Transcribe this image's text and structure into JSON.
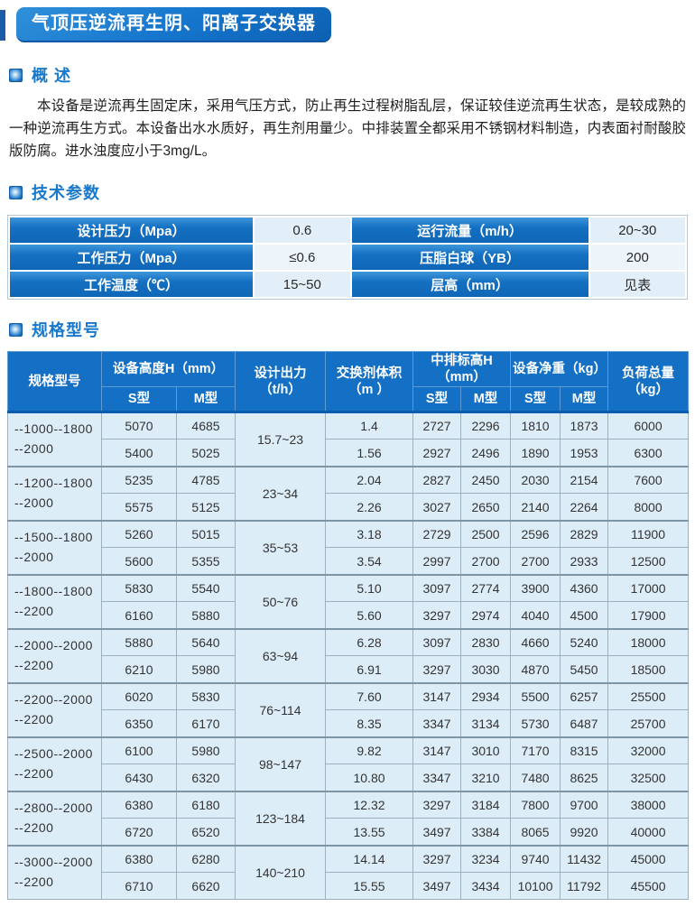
{
  "page": {
    "title": "气顶压逆流再生阴、阳离子交换器"
  },
  "sections": {
    "overview": {
      "heading": "概 述",
      "body": "本设备是逆流再生固定床，采用气压方式，防止再生过程树脂乱层，保证较佳逆流再生状态，是较成熟的一种逆流再生方式。本设备出水水质好，再生剂用量少。中排装置全都采用不锈钢材料制造，内表面衬耐酸胶版防腐。进水浊度应小于3mg/L。"
    },
    "tech_params": {
      "heading": "技术参数"
    },
    "specs": {
      "heading": "规格型号"
    }
  },
  "colors": {
    "title_bar_blue": "#1474cc",
    "header_blue": "#1470c4",
    "section_text_blue": "#1878cc",
    "cell_light_blue": "#dcedf8",
    "tech_value_blue": "#e2eff9"
  },
  "tech_table": {
    "rows": [
      {
        "label1": "设计压力（Mpa）",
        "value1": "0.6",
        "label2": "运行流量（m/h）",
        "value2": "20~30"
      },
      {
        "label1": "工作压力（Mpa）",
        "value1": "≤0.6",
        "label2": "压脂白球（YB）",
        "value2": "200"
      },
      {
        "label1": "工作温度（℃）",
        "value1": "15~50",
        "label2": "层高（mm）",
        "value2": "见表"
      }
    ]
  },
  "spec_table": {
    "header": {
      "model": "规格型号",
      "height": "设备高度H（mm）",
      "output": "设计出力\n（t/h）",
      "volume": "交换剂体积\n（m ）",
      "mid_height": "中排标高H\n（mm）",
      "weight": "设备净重（kg）",
      "load": "负荷总量\n（kg）",
      "s_type": "S型",
      "m_type": "M型"
    },
    "column_keys": [
      "height_s",
      "height_m",
      "volume",
      "mid_s",
      "mid_m",
      "weight_s",
      "weight_m",
      "load"
    ],
    "groups": [
      {
        "model": [
          "--1000--1800",
          "--2000"
        ],
        "output": "15.7~23",
        "rows": [
          [
            "5070",
            "4685",
            "1.4",
            "2727",
            "2296",
            "1810",
            "1873",
            "6000"
          ],
          [
            "5400",
            "5025",
            "1.56",
            "2927",
            "2496",
            "1890",
            "1953",
            "6300"
          ]
        ]
      },
      {
        "model": [
          "--1200--1800",
          "--2000"
        ],
        "output": "23~34",
        "rows": [
          [
            "5235",
            "4785",
            "2.04",
            "2827",
            "2450",
            "2030",
            "2154",
            "7600"
          ],
          [
            "5575",
            "5125",
            "2.26",
            "3027",
            "2650",
            "2140",
            "2264",
            "8000"
          ]
        ]
      },
      {
        "model": [
          "--1500--1800",
          "--2000"
        ],
        "output": "35~53",
        "rows": [
          [
            "5260",
            "5015",
            "3.18",
            "2729",
            "2500",
            "2596",
            "2829",
            "11900"
          ],
          [
            "5600",
            "5355",
            "3.54",
            "2997",
            "2700",
            "2700",
            "2933",
            "12500"
          ]
        ]
      },
      {
        "model": [
          "--1800--1800",
          "--2200"
        ],
        "output": "50~76",
        "rows": [
          [
            "5830",
            "5540",
            "5.10",
            "3097",
            "2774",
            "3900",
            "4360",
            "17000"
          ],
          [
            "6160",
            "5880",
            "5.60",
            "3297",
            "2974",
            "4040",
            "4500",
            "17900"
          ]
        ]
      },
      {
        "model": [
          "--2000--2000",
          "--2200"
        ],
        "output": "63~94",
        "rows": [
          [
            "5880",
            "5640",
            "6.28",
            "3097",
            "2830",
            "4660",
            "5240",
            "18000"
          ],
          [
            "6210",
            "5980",
            "6.91",
            "3297",
            "3030",
            "4870",
            "5450",
            "18500"
          ]
        ]
      },
      {
        "model": [
          "--2200--2000",
          "--2200"
        ],
        "output": "76~114",
        "rows": [
          [
            "6020",
            "5830",
            "7.60",
            "3147",
            "2934",
            "5500",
            "6257",
            "25500"
          ],
          [
            "6350",
            "6170",
            "8.35",
            "3347",
            "3134",
            "5730",
            "6487",
            "25700"
          ]
        ]
      },
      {
        "model": [
          "--2500--2000",
          "--2200"
        ],
        "output": "98~147",
        "rows": [
          [
            "6100",
            "5980",
            "9.82",
            "3147",
            "3010",
            "7170",
            "8315",
            "32000"
          ],
          [
            "6430",
            "6320",
            "10.80",
            "3347",
            "3210",
            "7480",
            "8625",
            "32500"
          ]
        ]
      },
      {
        "model": [
          "--2800--2000",
          "--2200"
        ],
        "output": "123~184",
        "rows": [
          [
            "6380",
            "6180",
            "12.32",
            "3297",
            "3184",
            "7800",
            "9700",
            "38000"
          ],
          [
            "6720",
            "6520",
            "13.55",
            "3497",
            "3384",
            "8065",
            "9920",
            "40000"
          ]
        ]
      },
      {
        "model": [
          "--3000--2000",
          "--2200"
        ],
        "output": "140~210",
        "rows": [
          [
            "6380",
            "6280",
            "14.14",
            "3297",
            "3234",
            "9740",
            "11432",
            "45000"
          ],
          [
            "6710",
            "6620",
            "15.55",
            "3497",
            "3434",
            "10100",
            "11792",
            "45500"
          ]
        ]
      }
    ]
  }
}
